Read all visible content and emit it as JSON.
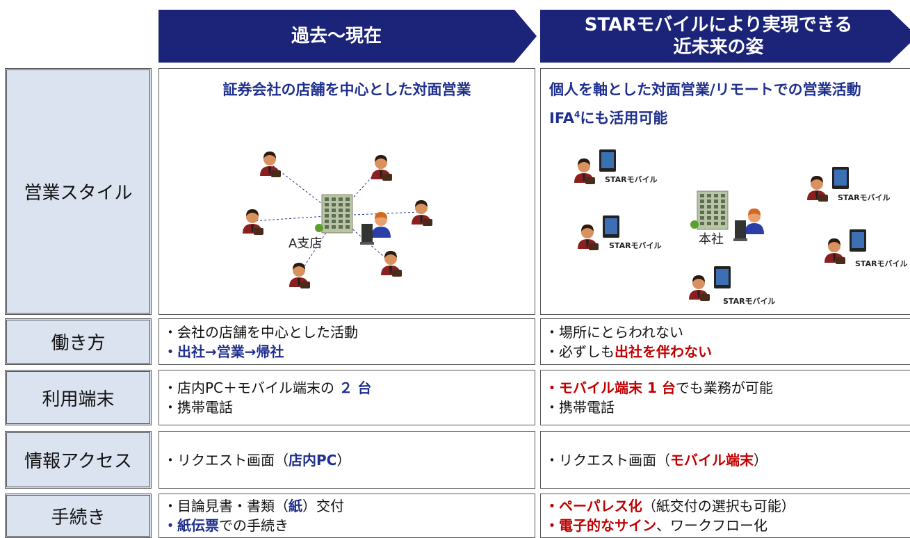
{
  "header": {
    "columns": [
      [
        "過去〜現在"
      ],
      [
        "STARモバイルにより実現できる",
        "近未来の姿"
      ]
    ]
  },
  "colors": {
    "header": "#1b2479",
    "label_bg": "#dbe2f0",
    "blue": "#1e2f8e",
    "red": "#c00000",
    "text": "#111111"
  },
  "rows": [
    {
      "label": "営業スタイル",
      "left": [
        [
          {
            "text": "証券会社の店舗を中心とした対面営業",
            "color": "#1e2f8e",
            "bold": true
          }
        ]
      ],
      "right": [
        [
          {
            "text": "個人を軸とした対面営業/リモートでの営業活動",
            "color": "#1e2f8e",
            "bold": true
          }
        ],
        [
          {
            "text": "IFA",
            "color": "#1e2f8e",
            "bold": true
          },
          {
            "text": "4",
            "color": "#1e2f8e",
            "bold": true,
            "sup": true
          },
          {
            "text": "にも活用可能",
            "color": "#1e2f8e",
            "bold": true
          }
        ]
      ]
    },
    {
      "label": "働き方",
      "left": [
        [
          {
            "text": "・会社の店舗を中心とした活動"
          }
        ],
        [
          {
            "text": "・出社→営業→帰社",
            "color": "#1e2f8e",
            "bold": true
          }
        ]
      ],
      "right": [
        [
          {
            "text": "・場所にとらわれない"
          }
        ],
        [
          {
            "text": "・必ずしも"
          },
          {
            "text": "出社を伴わない",
            "color": "#c00000",
            "bold": true
          }
        ]
      ]
    },
    {
      "label": "利用端末",
      "left": [
        [
          {
            "text": "・店内PC＋モバイル端末の "
          },
          {
            "text": "２ 台",
            "color": "#1e2f8e",
            "bold": true
          }
        ],
        [
          {
            "text": "・携帯電話"
          }
        ]
      ],
      "right": [
        [
          {
            "text": "・モバイル端末 1 台",
            "color": "#c00000",
            "bold": true
          },
          {
            "text": "でも業務が可能"
          }
        ],
        [
          {
            "text": "・携帯電話"
          }
        ]
      ]
    },
    {
      "label": "情報アクセス",
      "left": [
        [
          {
            "text": "・リクエスト画面（"
          },
          {
            "text": "店内PC",
            "color": "#1e2f8e",
            "bold": true
          },
          {
            "text": "）"
          }
        ]
      ],
      "right": [
        [
          {
            "text": "・リクエスト画面（"
          },
          {
            "text": "モバイル端末",
            "color": "#c00000",
            "bold": true
          },
          {
            "text": "）"
          }
        ]
      ]
    },
    {
      "label": "手続き",
      "left": [
        [
          {
            "text": "・目論見書・書類（"
          },
          {
            "text": "紙",
            "color": "#1e2f8e",
            "bold": true
          },
          {
            "text": "）交付"
          }
        ],
        [
          {
            "text": "・紙伝票",
            "color": "#1e2f8e",
            "bold": true
          },
          {
            "text": "での手続き"
          }
        ]
      ],
      "right": [
        [
          {
            "text": "・ペーパレス化",
            "color": "#c00000",
            "bold": true
          },
          {
            "text": "（紙交付の選択も可能）"
          }
        ],
        [
          {
            "text": "・電子的なサイン",
            "color": "#c00000",
            "bold": true
          },
          {
            "text": "、ワークフロー化"
          }
        ]
      ]
    }
  ],
  "diagram_left": {
    "hub": "A支店"
  },
  "diagram_right": {
    "hub": "本社",
    "devices": [
      "STARモバイル",
      "STARモバイル",
      "STARモバイル",
      "STARモバイル",
      "STARモバイル"
    ]
  }
}
